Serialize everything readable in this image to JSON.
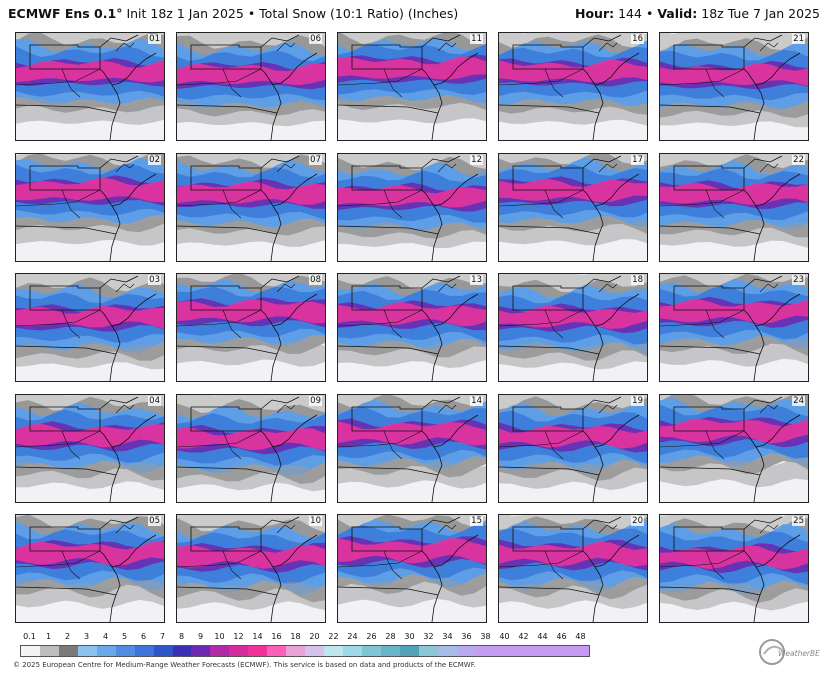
{
  "header": {
    "model": "ECMWF Ens 0.1",
    "degree_mark": "°",
    "init": "Init 18z 1 Jan 2025",
    "bullet": "•",
    "product": "Total Snow (10:1 Ratio) (Inches)",
    "hour_label": "Hour:",
    "hour_value": "144",
    "bullet2": "•",
    "valid_label": "Valid:",
    "valid_value": "18z Tue 7 Jan 2025"
  },
  "members": [
    [
      "01",
      "06",
      "11",
      "16",
      "21"
    ],
    [
      "02",
      "07",
      "12",
      "17",
      "22"
    ],
    [
      "03",
      "08",
      "13",
      "18",
      "23"
    ],
    [
      "04",
      "09",
      "14",
      "19",
      "24"
    ],
    [
      "05",
      "10",
      "15",
      "20",
      "25"
    ]
  ],
  "colorbar": {
    "labels": [
      "0.1",
      "1",
      "2",
      "3",
      "4",
      "5",
      "6",
      "7",
      "8",
      "9",
      "10",
      "12",
      "14",
      "16",
      "18",
      "20",
      "22",
      "24",
      "26",
      "28",
      "30",
      "32",
      "34",
      "36",
      "38",
      "40",
      "42",
      "44",
      "46",
      "48"
    ],
    "colors": [
      "#f4f4f8",
      "#bdbdbd",
      "#7a7a7a",
      "#8ec2ef",
      "#6aa8e8",
      "#4f8ee2",
      "#3e74d8",
      "#2f56c8",
      "#3a2fb5",
      "#6a2bb0",
      "#b12aa8",
      "#d62b9e",
      "#f0329a",
      "#ff5fb6",
      "#e9a2d6",
      "#d6c3eb",
      "#bfe6ee",
      "#9fd8e6",
      "#7ec6d6",
      "#68b5c8",
      "#53a3b8",
      "#8cc7d6",
      "#a8bde6",
      "#b9a9ef",
      "#c49ef2",
      "#c79af3",
      "#c79af3",
      "#c79af3",
      "#c79af3",
      "#c79af3"
    ]
  },
  "footer": {
    "copyright": "© 2025 European Centre for Medium-Range Weather Forecasts (ECMWF). This service is based on data and products of the ECMWF."
  },
  "logo": {
    "text": "WeatherBELL"
  }
}
